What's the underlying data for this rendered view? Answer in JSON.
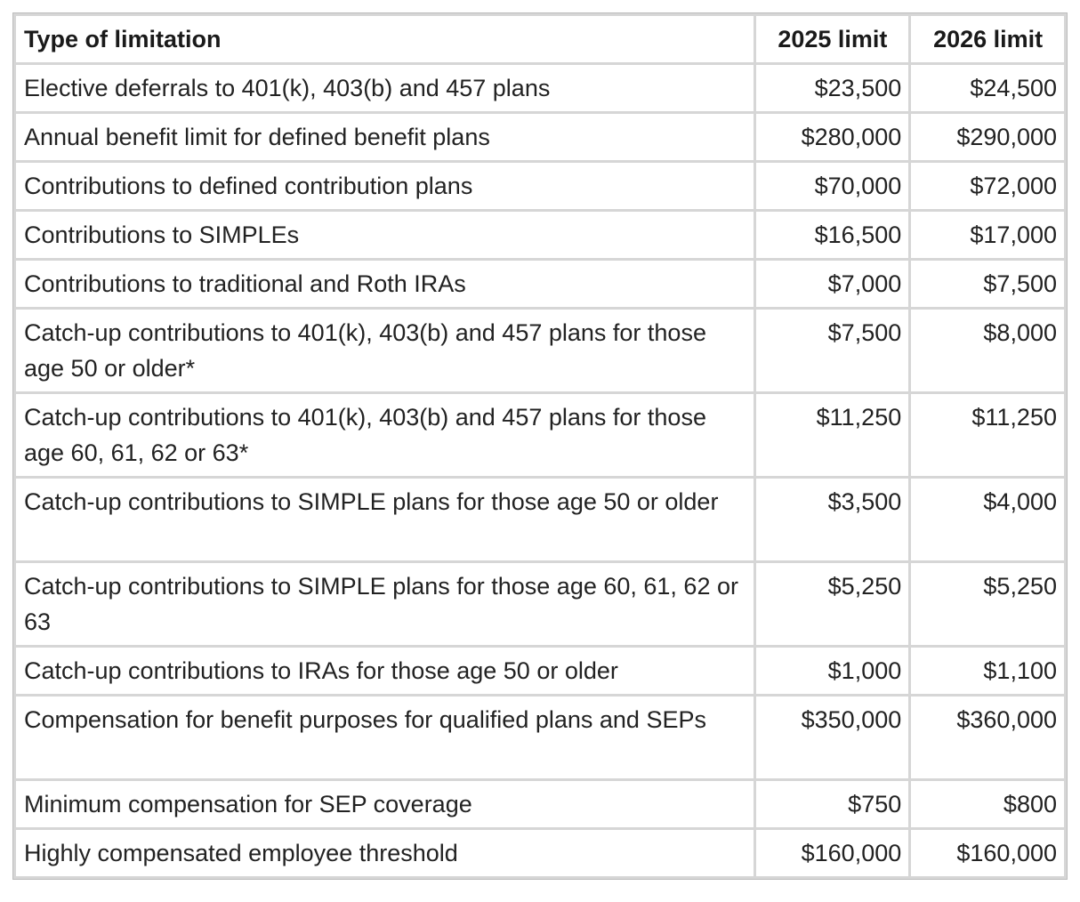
{
  "table": {
    "headers": {
      "type": "Type of limitation",
      "y2025": "2025 limit",
      "y2026": "2026 limit"
    },
    "rows": [
      {
        "label": "Elective deferrals to 401(k), 403(b) and 457 plans",
        "y2025": "$23,500",
        "y2026": "$24,500"
      },
      {
        "label": "Annual benefit limit for defined benefit plans",
        "y2025": "$280,000",
        "y2026": "$290,000"
      },
      {
        "label": "Contributions to defined contribution plans",
        "y2025": "$70,000",
        "y2026": "$72,000"
      },
      {
        "label": "Contributions to SIMPLEs",
        "y2025": "$16,500",
        "y2026": "$17,000"
      },
      {
        "label": "Contributions to traditional and Roth IRAs",
        "y2025": "$7,000",
        "y2026": "$7,500"
      },
      {
        "label": "Catch-up contributions to 401(k), 403(b) and 457 plans for those age 50 or older*",
        "y2025": "$7,500",
        "y2026": "$8,000"
      },
      {
        "label": "Catch-up contributions to 401(k), 403(b) and 457 plans for those age 60, 61, 62 or 63*",
        "y2025": "$11,250",
        "y2026": "$11,250"
      },
      {
        "label": "Catch-up contributions to SIMPLE plans for those age 50 or older",
        "y2025": "$3,500",
        "y2026": "$4,000"
      },
      {
        "label": "Catch-up contributions to SIMPLE plans for those age 60, 61, 62 or 63",
        "y2025": "$5,250",
        "y2026": "$5,250"
      },
      {
        "label": "Catch-up contributions to IRAs for those age 50 or older",
        "y2025": "$1,000",
        "y2026": "$1,100"
      },
      {
        "label": "Compensation for benefit purposes for qualified plans and SEPs",
        "y2025": "$350,000",
        "y2026": "$360,000"
      },
      {
        "label": "Minimum compensation for SEP coverage",
        "y2025": "$750",
        "y2026": "$800"
      },
      {
        "label": "Highly compensated employee threshold",
        "y2025": "$160,000",
        "y2026": "$160,000"
      }
    ]
  }
}
